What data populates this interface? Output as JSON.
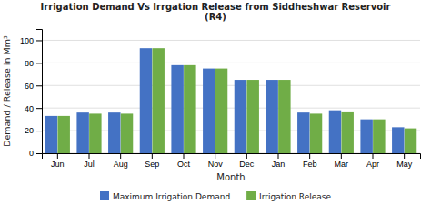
{
  "chart_data": {
    "type": "bar",
    "title": "Irrigation Demand Vs Irrgation Release from Siddheshwar Reservoir\n(R4)",
    "xlabel": "Month",
    "ylabel": "Demand / Release in Mm³",
    "categories": [
      "Jun",
      "Jul",
      "Aug",
      "Sep",
      "Oct",
      "Nov",
      "Dec",
      "Jan",
      "Feb",
      "Mar",
      "Apr",
      "May"
    ],
    "series": [
      {
        "name": "Maximum Irrigation Demand",
        "color": "#4472C4",
        "values": [
          33,
          36,
          36,
          93,
          78,
          75,
          65,
          65,
          36,
          38,
          30,
          23
        ]
      },
      {
        "name": "Irrigation Release",
        "color": "#70AD47",
        "values": [
          33,
          35,
          35,
          93,
          78,
          75,
          65,
          65,
          35,
          37,
          30,
          22
        ]
      }
    ],
    "ylim": [
      0,
      110
    ],
    "yticks": [
      0,
      20,
      40,
      60,
      80,
      100
    ],
    "grid": true,
    "legend": "bottom"
  }
}
